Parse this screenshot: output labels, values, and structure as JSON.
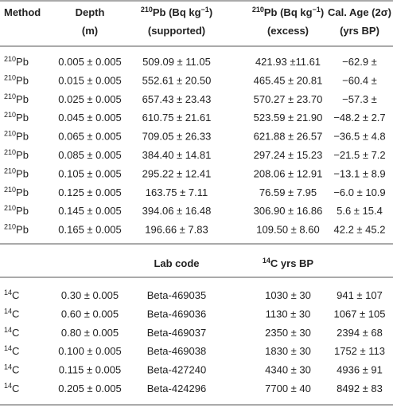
{
  "table": {
    "header": [
      [
        [
          "Method"
        ]
      ],
      [
        [
          "Depth"
        ],
        [
          "(m)"
        ]
      ],
      [
        [
          {
            "sup": "210"
          },
          "Pb (Bq kg",
          {
            "sup": "−1"
          },
          ")"
        ],
        [
          "(supported)"
        ]
      ],
      [
        [
          {
            "sup": "210"
          },
          "Pb (Bq kg",
          {
            "sup": "−1"
          },
          ")"
        ],
        [
          "(excess)"
        ]
      ],
      [
        [
          "Cal. Age (2σ)"
        ],
        [
          "(yrs BP)"
        ]
      ]
    ],
    "rows": [
      [
        [
          {
            "sup": "210"
          },
          "Pb"
        ],
        "0.005 ± 0.005",
        "509.09 ± 11.05",
        "421.93 ±11.61",
        "−62.9 ±"
      ],
      [
        [
          {
            "sup": "210"
          },
          "Pb"
        ],
        "0.015 ± 0.005",
        "552.61 ± 20.50",
        "465.45 ± 20.81",
        "−60.4 ±"
      ],
      [
        [
          {
            "sup": "210"
          },
          "Pb"
        ],
        "0.025 ± 0.005",
        "657.43 ± 23.43",
        "570.27 ± 23.70",
        "−57.3 ±"
      ],
      [
        [
          {
            "sup": "210"
          },
          "Pb"
        ],
        "0.045 ± 0.005",
        "610.75 ± 21.61",
        "523.59 ± 21.90",
        "−48.2 ± 2.7"
      ],
      [
        [
          {
            "sup": "210"
          },
          "Pb"
        ],
        "0.065 ± 0.005",
        "709.05 ± 26.33",
        "621.88 ± 26.57",
        "−36.5 ± 4.8"
      ],
      [
        [
          {
            "sup": "210"
          },
          "Pb"
        ],
        "0.085 ± 0.005",
        "384.40 ± 14.81",
        "297.24 ± 15.23",
        "−21.5 ± 7.2"
      ],
      [
        [
          {
            "sup": "210"
          },
          "Pb"
        ],
        "0.105 ± 0.005",
        "295.22 ± 12.41",
        "208.06 ± 12.91",
        "−13.1 ± 8.9"
      ],
      [
        [
          {
            "sup": "210"
          },
          "Pb"
        ],
        "0.125 ± 0.005",
        "163.75 ± 7.11",
        "76.59 ± 7.95",
        "−6.0 ± 10.9"
      ],
      [
        [
          {
            "sup": "210"
          },
          "Pb"
        ],
        "0.145 ± 0.005",
        "394.06 ± 16.48",
        "306.90 ± 16.86",
        "5.6 ± 15.4"
      ],
      [
        [
          {
            "sup": "210"
          },
          "Pb"
        ],
        "0.165 ± 0.005",
        "196.66 ± 7.83",
        "109.50 ± 8.60",
        "42.2 ± 45.2"
      ]
    ],
    "header2": [
      null,
      null,
      [
        [
          "Lab code"
        ]
      ],
      [
        [
          {
            "sup": "14"
          },
          "C yrs BP"
        ]
      ],
      null
    ],
    "rows2": [
      [
        [
          {
            "sup": "14"
          },
          "C"
        ],
        "0.30 ± 0.005",
        "Beta-469035",
        "1030 ± 30",
        "941 ± 107"
      ],
      [
        [
          {
            "sup": "14"
          },
          "C"
        ],
        "0.60 ± 0.005",
        "Beta-469036",
        "1130 ± 30",
        "1067 ± 105"
      ],
      [
        [
          {
            "sup": "14"
          },
          "C"
        ],
        "0.80 ± 0.005",
        "Beta-469037",
        "2350 ± 30",
        "2394 ± 68"
      ],
      [
        [
          {
            "sup": "14"
          },
          "C"
        ],
        "0.100 ± 0.005",
        "Beta-469038",
        "1830 ± 30",
        "1752 ± 113"
      ],
      [
        [
          {
            "sup": "14"
          },
          "C"
        ],
        "0.115 ± 0.005",
        "Beta-427240",
        "4340 ± 30",
        "4936 ± 91"
      ],
      [
        [
          {
            "sup": "14"
          },
          "C"
        ],
        "0.205 ± 0.005",
        "Beta-424296",
        "7700 ± 40",
        "8492 ± 83"
      ]
    ]
  }
}
